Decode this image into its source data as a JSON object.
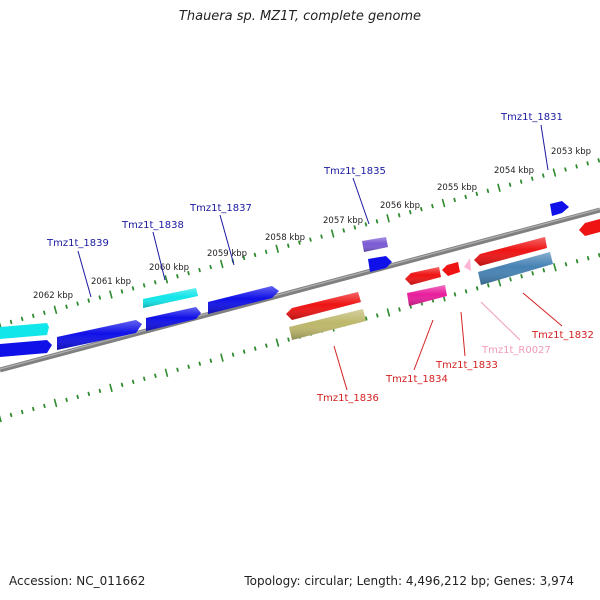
{
  "title": "Thauera sp. MZ1T, complete genome",
  "footer": {
    "accession": "Accession: NC_011662",
    "stats": "Topology: circular; Length: 4,496,212 bp; Genes: 3,974"
  },
  "colors": {
    "backbone": "#808080",
    "tick_dots": "#2e8b2e",
    "label_forward": "#1a1aa0",
    "label_reverse": "#d42020",
    "label_rna": "#f09ab8",
    "cyan": "#11e6ea",
    "blue": "#1010e8",
    "slate": "#7a5ad4",
    "red": "#ee1414",
    "magenta": "#e81e9c",
    "olive": "#bdb76b",
    "steel": "#4682b4",
    "pink": "#ffb6d6"
  },
  "kbp_labels": [
    "2053 kbp",
    "2054 kbp",
    "2055 kbp",
    "2056 kbp",
    "2057 kbp",
    "2058 kbp",
    "2059 kbp",
    "2060 kbp",
    "2061 kbp",
    "2062 kbp"
  ],
  "gene_labels": [
    {
      "id": "g1831",
      "text": "Tmz1t_1831",
      "strand": "forward"
    },
    {
      "id": "g1835",
      "text": "Tmz1t_1835",
      "strand": "forward"
    },
    {
      "id": "g1837",
      "text": "Tmz1t_1837",
      "strand": "forward"
    },
    {
      "id": "g1838",
      "text": "Tmz1t_1838",
      "strand": "forward"
    },
    {
      "id": "g1839",
      "text": "Tmz1t_1839",
      "strand": "forward"
    },
    {
      "id": "g1832",
      "text": "Tmz1t_1832",
      "strand": "reverse"
    },
    {
      "id": "gR0027",
      "text": "Tmz1t_R0027",
      "strand": "rna"
    },
    {
      "id": "g1833",
      "text": "Tmz1t_1833",
      "strand": "reverse"
    },
    {
      "id": "g1834",
      "text": "Tmz1t_1834",
      "strand": "reverse"
    },
    {
      "id": "g1836",
      "text": "Tmz1t_1836",
      "strand": "reverse"
    }
  ]
}
